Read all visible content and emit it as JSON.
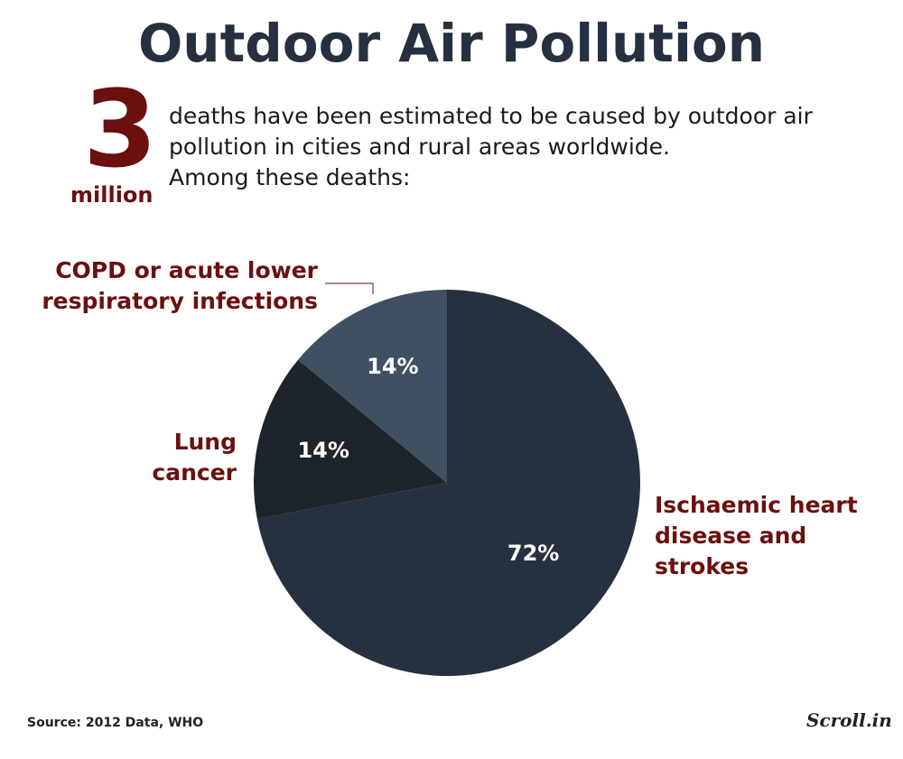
{
  "title": "Outdoor Air Pollution",
  "headline": {
    "number": "3",
    "unit": "million",
    "text": "deaths have been estimated to be caused by outdoor air pollution in cities and rural areas worldwide.",
    "subtext": "Among these deaths:"
  },
  "chart_data": {
    "type": "pie",
    "categories": [
      "Ischaemic heart disease and strokes",
      "Lung cancer",
      "COPD or acute lower respiratory infections"
    ],
    "values": [
      72,
      14,
      14
    ],
    "value_labels": [
      "72%",
      "14%",
      "14%"
    ],
    "colors": [
      "#253040",
      "#1e242b",
      "#3f5062"
    ]
  },
  "footer": {
    "source": "Source: 2012 Data, WHO",
    "brand": "Scroll.in"
  }
}
